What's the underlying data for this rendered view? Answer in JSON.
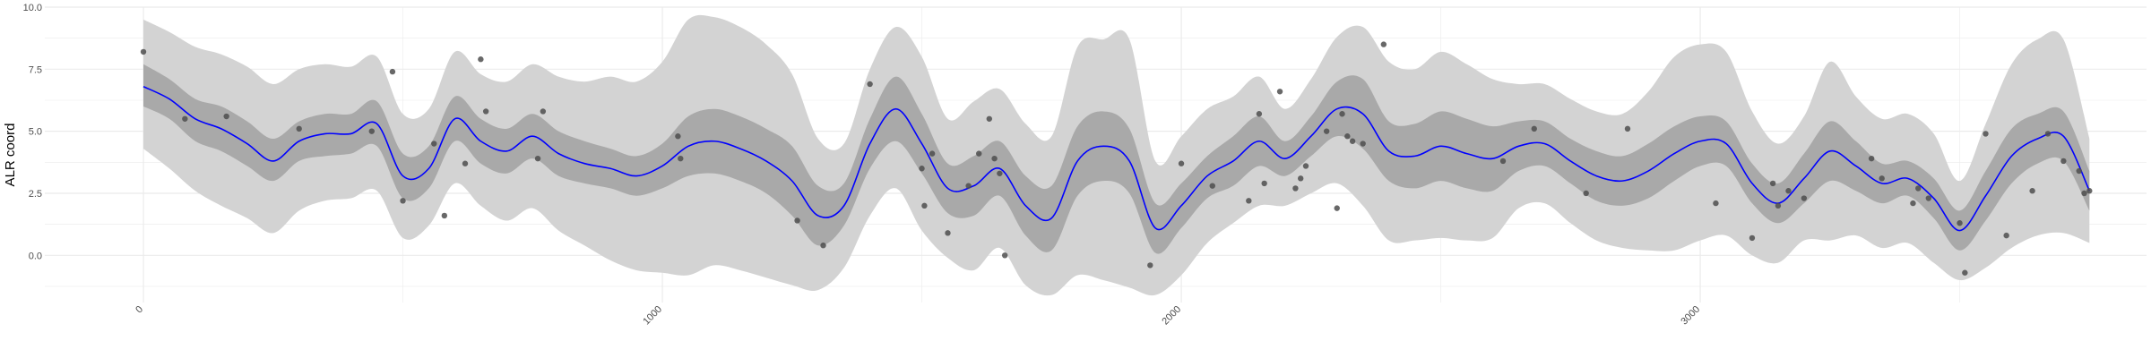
{
  "chart_data": {
    "type": "line",
    "title": "",
    "xlabel": "",
    "ylabel": "ALR coord",
    "xlim": [
      -190,
      3860
    ],
    "ylim": [
      -1.9,
      10.0
    ],
    "x_ticks": [
      0,
      1000,
      2000,
      3000
    ],
    "x_tick_labels": [
      "0",
      "1000",
      "2000",
      "3000"
    ],
    "y_ticks": [
      0.0,
      2.5,
      5.0,
      7.5,
      10.0
    ],
    "y_tick_labels": [
      "0.0",
      "2.5",
      "5.0",
      "7.5",
      "10.0"
    ],
    "grid": true,
    "legend": "none",
    "colors": {
      "mean_line": "#0000ff",
      "inner_band": "#a9a9a9",
      "outer_band": "#d3d3d3",
      "points": "#4d4d4d",
      "grid": "#ebebeb"
    },
    "series": [
      {
        "role": "mean",
        "x": [
          0,
          50,
          100,
          150,
          200,
          250,
          300,
          350,
          400,
          450,
          500,
          550,
          600,
          650,
          700,
          750,
          800,
          850,
          900,
          950,
          1000,
          1050,
          1100,
          1150,
          1200,
          1250,
          1300,
          1350,
          1400,
          1450,
          1500,
          1550,
          1600,
          1650,
          1700,
          1750,
          1800,
          1850,
          1900,
          1950,
          2000,
          2050,
          2100,
          2150,
          2200,
          2250,
          2300,
          2350,
          2400,
          2450,
          2500,
          2550,
          2600,
          2650,
          2700,
          2750,
          2800,
          2850,
          2900,
          2950,
          3000,
          3050,
          3100,
          3150,
          3200,
          3250,
          3300,
          3350,
          3400,
          3450,
          3500,
          3550,
          3600,
          3650,
          3700,
          3750
        ],
        "y": [
          6.8,
          6.3,
          5.5,
          5.1,
          4.5,
          3.8,
          4.6,
          4.9,
          4.9,
          5.3,
          3.2,
          3.5,
          5.5,
          4.6,
          4.2,
          4.8,
          4.1,
          3.7,
          3.5,
          3.2,
          3.6,
          4.4,
          4.6,
          4.3,
          3.8,
          3.0,
          1.6,
          2.0,
          4.5,
          5.9,
          4.5,
          2.7,
          2.8,
          3.5,
          2.0,
          1.5,
          3.8,
          4.4,
          3.8,
          1.1,
          2.0,
          3.2,
          3.8,
          4.6,
          3.9,
          4.8,
          5.9,
          5.7,
          4.2,
          4.0,
          4.4,
          4.1,
          3.9,
          4.4,
          4.5,
          3.8,
          3.2,
          3.0,
          3.4,
          4.1,
          4.6,
          4.5,
          2.9,
          2.1,
          3.1,
          4.2,
          3.6,
          2.9,
          3.1,
          2.3,
          1.0,
          2.4,
          4.0,
          4.7,
          4.8,
          2.6
        ],
        "inner_lower": [
          6.0,
          5.5,
          4.6,
          4.2,
          3.6,
          3.0,
          3.8,
          4.0,
          4.1,
          4.4,
          2.3,
          2.7,
          4.6,
          3.7,
          3.3,
          3.9,
          3.2,
          2.9,
          2.7,
          2.4,
          2.7,
          3.2,
          3.3,
          3.0,
          2.5,
          1.6,
          0.4,
          1.2,
          3.5,
          4.6,
          3.3,
          1.7,
          1.6,
          2.4,
          0.8,
          0.2,
          2.4,
          3.0,
          2.5,
          0.1,
          1.1,
          2.3,
          2.8,
          3.6,
          3.2,
          4.0,
          4.8,
          4.3,
          3.0,
          2.7,
          3.0,
          2.7,
          2.6,
          3.4,
          3.6,
          2.9,
          2.2,
          2.0,
          2.3,
          3.0,
          3.6,
          3.6,
          2.1,
          1.3,
          2.1,
          3.0,
          2.6,
          2.1,
          2.4,
          1.5,
          0.2,
          1.4,
          2.9,
          3.7,
          3.8,
          1.8
        ],
        "inner_upper": [
          7.7,
          7.1,
          6.3,
          6.0,
          5.4,
          4.7,
          5.4,
          5.7,
          5.7,
          6.2,
          4.1,
          4.4,
          6.4,
          5.5,
          5.1,
          5.7,
          5.0,
          4.6,
          4.3,
          4.0,
          4.5,
          5.6,
          5.9,
          5.6,
          5.1,
          4.4,
          2.8,
          2.9,
          5.5,
          7.2,
          5.7,
          3.7,
          4.0,
          4.6,
          3.2,
          2.8,
          5.2,
          5.8,
          5.1,
          2.1,
          2.9,
          4.0,
          4.8,
          5.6,
          4.6,
          5.6,
          7.0,
          7.1,
          5.4,
          5.3,
          5.8,
          5.5,
          5.2,
          5.4,
          5.4,
          4.7,
          4.2,
          4.0,
          4.5,
          5.2,
          5.6,
          5.4,
          3.7,
          2.9,
          4.1,
          5.4,
          4.6,
          3.7,
          3.8,
          3.1,
          1.8,
          3.4,
          5.1,
          5.7,
          5.8,
          3.4
        ],
        "outer_lower": [
          4.3,
          3.5,
          2.6,
          2.0,
          1.5,
          0.9,
          1.8,
          2.2,
          2.3,
          2.6,
          0.7,
          1.2,
          2.9,
          2.0,
          1.4,
          1.9,
          1.0,
          0.4,
          -0.2,
          -0.6,
          -0.7,
          -0.8,
          -0.4,
          -0.6,
          -0.9,
          -1.2,
          -1.4,
          -0.5,
          1.6,
          2.7,
          1.0,
          -0.1,
          -0.6,
          0.3,
          -1.2,
          -1.6,
          -0.8,
          -1.0,
          -1.3,
          -1.6,
          -0.8,
          0.5,
          1.3,
          2.0,
          2.0,
          2.5,
          2.9,
          2.0,
          0.6,
          0.6,
          0.7,
          0.6,
          0.7,
          1.9,
          2.1,
          1.3,
          0.6,
          0.3,
          0.2,
          0.2,
          0.6,
          0.8,
          0.0,
          -0.3,
          0.6,
          0.6,
          0.8,
          0.3,
          0.5,
          -0.3,
          -1.0,
          -0.5,
          0.3,
          0.8,
          0.9,
          0.5
        ],
        "outer_upper": [
          9.5,
          9.0,
          8.4,
          8.1,
          7.6,
          6.9,
          7.5,
          7.7,
          7.6,
          8.0,
          5.7,
          5.9,
          8.2,
          7.3,
          7.0,
          7.7,
          7.2,
          7.0,
          7.2,
          7.0,
          7.8,
          9.5,
          9.6,
          9.2,
          8.5,
          7.3,
          4.7,
          4.5,
          7.5,
          9.2,
          8.0,
          5.5,
          6.2,
          6.7,
          5.3,
          4.8,
          8.4,
          8.7,
          8.7,
          3.8,
          4.8,
          5.9,
          6.4,
          7.2,
          5.9,
          7.1,
          8.8,
          9.2,
          7.8,
          7.5,
          8.2,
          7.7,
          7.1,
          6.9,
          6.9,
          6.3,
          5.8,
          5.7,
          6.6,
          8.0,
          8.5,
          8.2,
          5.8,
          4.5,
          5.6,
          7.8,
          6.4,
          5.5,
          5.7,
          4.9,
          3.0,
          5.3,
          7.7,
          8.7,
          8.7,
          4.7
        ]
      }
    ],
    "points": {
      "x": [
        0,
        80,
        160,
        300,
        440,
        480,
        500,
        560,
        580,
        620,
        650,
        660,
        760,
        770,
        1030,
        1035,
        1260,
        1310,
        1400,
        1500,
        1505,
        1520,
        1550,
        1590,
        1610,
        1630,
        1640,
        1650,
        1660,
        1940,
        2000,
        2060,
        2130,
        2150,
        2160,
        2190,
        2220,
        2230,
        2240,
        2280,
        2300,
        2310,
        2320,
        2330,
        2350,
        2390,
        2620,
        2680,
        2780,
        2860,
        3030,
        3100,
        3140,
        3150,
        3170,
        3200,
        3330,
        3350,
        3410,
        3420,
        3440,
        3500,
        3510,
        3550,
        3590,
        3640,
        3670,
        3700,
        3730,
        3740,
        3750
      ],
      "y": [
        8.2,
        5.5,
        5.6,
        5.1,
        5.0,
        7.4,
        2.2,
        4.5,
        1.6,
        3.7,
        7.9,
        5.8,
        3.9,
        5.8,
        4.8,
        3.9,
        1.4,
        0.4,
        6.9,
        3.5,
        2.0,
        4.1,
        0.9,
        2.8,
        4.1,
        5.5,
        3.9,
        3.3,
        0.0,
        -0.4,
        3.7,
        2.8,
        2.2,
        5.7,
        2.9,
        6.6,
        2.7,
        3.1,
        3.6,
        5.0,
        1.9,
        5.7,
        4.8,
        4.6,
        4.5,
        8.5,
        3.8,
        5.1,
        2.5,
        5.1,
        2.1,
        0.7,
        2.9,
        2.0,
        2.6,
        2.3,
        3.9,
        3.1,
        2.1,
        2.7,
        2.3,
        1.3,
        -0.7,
        4.9,
        0.8,
        2.6,
        4.9,
        3.8,
        3.4,
        2.5,
        2.6
      ]
    }
  }
}
